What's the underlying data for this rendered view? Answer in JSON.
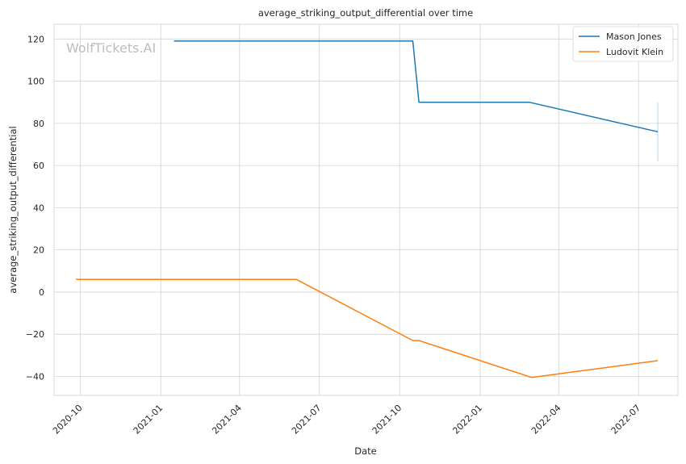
{
  "watermark": "WolfTickets.AI",
  "chart_data": {
    "type": "line",
    "title": "average_striking_output_differential over time",
    "xlabel": "Date",
    "ylabel": "average_striking_output_differential",
    "x_range": [
      "2020-09-01",
      "2022-08-15"
    ],
    "ylim": [
      -49,
      127
    ],
    "x_ticks": [
      "2020-10",
      "2021-01",
      "2021-04",
      "2021-07",
      "2021-10",
      "2022-01",
      "2022-04",
      "2022-07"
    ],
    "y_ticks": [
      -40,
      -20,
      0,
      20,
      40,
      60,
      80,
      100,
      120
    ],
    "grid": true,
    "legend_position": "top-right",
    "series": [
      {
        "name": "Mason Jones",
        "color": "#1f77b4",
        "points": [
          {
            "x": "2021-01-16",
            "y": 119
          },
          {
            "x": "2021-10-16",
            "y": 119
          },
          {
            "x": "2021-10-23",
            "y": 90
          },
          {
            "x": "2022-02-26",
            "y": 90
          },
          {
            "x": "2022-07-23",
            "y": 76
          }
        ],
        "error_band": {
          "x": "2022-07-23",
          "low": 62,
          "high": 90
        }
      },
      {
        "name": "Ludovit Klein",
        "color": "#ff7f0e",
        "points": [
          {
            "x": "2020-09-26",
            "y": 6
          },
          {
            "x": "2021-06-05",
            "y": 6
          },
          {
            "x": "2021-10-16",
            "y": -23
          },
          {
            "x": "2021-10-23",
            "y": -23
          },
          {
            "x": "2022-03-01",
            "y": -40.5
          },
          {
            "x": "2022-07-23",
            "y": -32.5
          }
        ]
      }
    ]
  }
}
